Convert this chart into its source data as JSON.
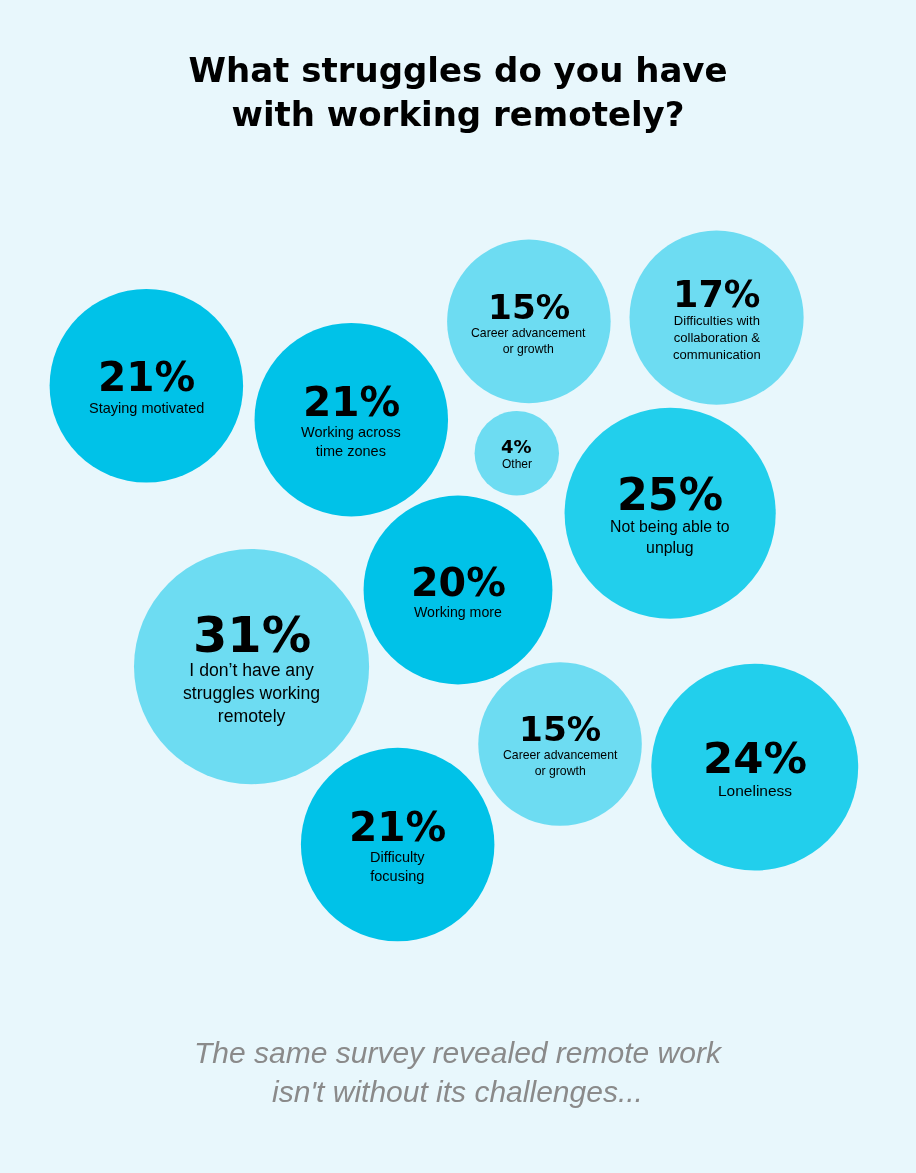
{
  "chart_data": {
    "type": "other",
    "title": "What struggles do you have with working remotely?",
    "categories": [
      "Working more",
      "I don’t have any struggles working remotely",
      "Working across time zones",
      "Other",
      "Career advancement or growth",
      "Not being able to unplug",
      "Difficulty focusing",
      "Loneliness",
      "Career advancement or growth",
      "Staying motivated",
      "Difficulties with collaboration & communication"
    ],
    "values": [
      20,
      31,
      21,
      4,
      15,
      25,
      21,
      24,
      15,
      21,
      17
    ],
    "value_labels": [
      "20%",
      "31%",
      "21%",
      "4%",
      "15%",
      "25%",
      "21%",
      "24%",
      "15%",
      "21%",
      "17%"
    ],
    "colors": [
      "#00c2e8",
      "#6ddcf2",
      "#00c2e8",
      "#6ddcf2",
      "#6ddcf2",
      "#22cfec",
      "#00c2e8",
      "#22cfec",
      "#6ddcf2",
      "#00c2e8",
      "#6ddcf2"
    ],
    "annotations": [
      "The same survey revealed remote work isn't without its challenges..."
    ]
  }
}
